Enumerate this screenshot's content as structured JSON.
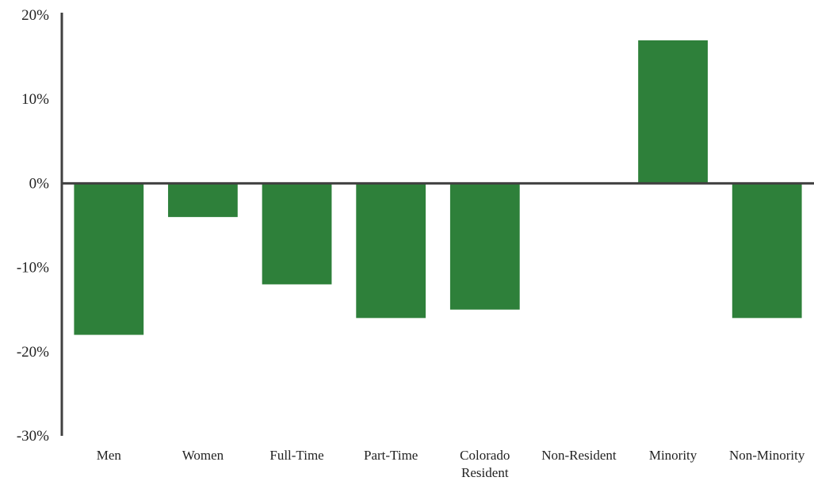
{
  "chart_data": {
    "type": "bar",
    "title": "",
    "xlabel": "",
    "ylabel": "",
    "categories": [
      "Men",
      "Women",
      "Full-Time",
      "Part-Time",
      "Colorado Resident",
      "Non-Resident",
      "Minority",
      "Non-Minority"
    ],
    "category_lines": [
      [
        "Men"
      ],
      [
        "Women"
      ],
      [
        "Full-Time"
      ],
      [
        "Part-Time"
      ],
      [
        "Colorado",
        "Resident"
      ],
      [
        "Non-Resident"
      ],
      [
        "Minority"
      ],
      [
        "Non-Minority"
      ]
    ],
    "values": [
      -18,
      -4,
      -12,
      -16,
      -15,
      0,
      17,
      -16
    ],
    "ylim": [
      -30,
      20
    ],
    "yticks": [
      20,
      10,
      0,
      -10,
      -20,
      -30
    ],
    "ytick_labels": [
      "20%",
      "10%",
      "0%",
      "-10%",
      "-20%",
      "-30%"
    ],
    "grid": false,
    "legend": "none",
    "colors": {
      "bar": "#2e803a",
      "axis": "#404040",
      "text": "#222222"
    }
  }
}
